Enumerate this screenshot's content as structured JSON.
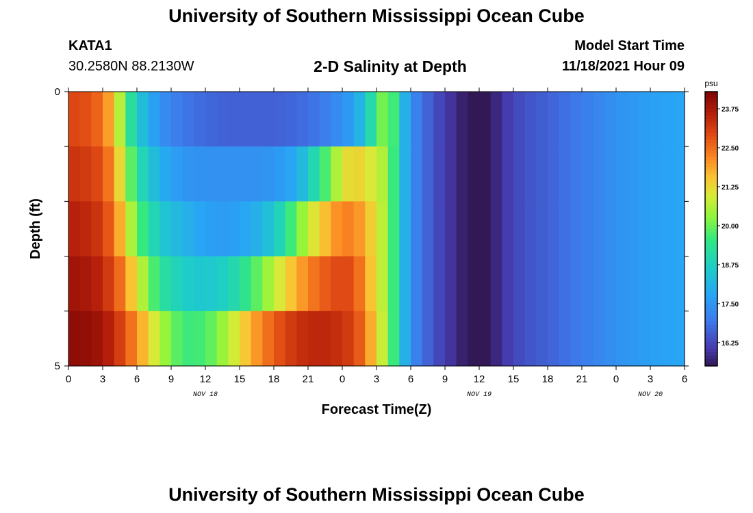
{
  "header": {
    "title": "University of Southern Mississippi Ocean Cube",
    "station": "KATA1",
    "coordinates": "30.2580N  88.2130W",
    "subtitle": "2-D Salinity at Depth",
    "model_start_label": "Model Start Time",
    "model_start_value": "11/18/2021 Hour 09"
  },
  "footer": {
    "title": "University of Southern Mississippi Ocean Cube"
  },
  "chart_data": {
    "type": "heatmap",
    "title": "2-D Salinity at Depth",
    "xlabel": "Forecast Time(Z)",
    "ylabel": "Depth (ft)",
    "x_start": 0,
    "x_end": 54,
    "x_ticks": [
      {
        "t": 0,
        "label": "0"
      },
      {
        "t": 3,
        "label": "3"
      },
      {
        "t": 6,
        "label": "6"
      },
      {
        "t": 9,
        "label": "9"
      },
      {
        "t": 12,
        "label": "12"
      },
      {
        "t": 15,
        "label": "15"
      },
      {
        "t": 18,
        "label": "18"
      },
      {
        "t": 21,
        "label": "21"
      },
      {
        "t": 24,
        "label": "0"
      },
      {
        "t": 27,
        "label": "3"
      },
      {
        "t": 30,
        "label": "6"
      },
      {
        "t": 33,
        "label": "9"
      },
      {
        "t": 36,
        "label": "12"
      },
      {
        "t": 39,
        "label": "15"
      },
      {
        "t": 42,
        "label": "18"
      },
      {
        "t": 45,
        "label": "21"
      },
      {
        "t": 48,
        "label": "0"
      },
      {
        "t": 51,
        "label": "3"
      },
      {
        "t": 54,
        "label": "6"
      }
    ],
    "date_labels": [
      {
        "t": 12,
        "label": "NOV 18"
      },
      {
        "t": 36,
        "label": "NOV 19"
      },
      {
        "t": 51,
        "label": "NOV 20"
      }
    ],
    "y_ticks": [
      {
        "v": 0,
        "label": "0"
      },
      {
        "v": 1,
        "label": ""
      },
      {
        "v": 2,
        "label": ""
      },
      {
        "v": 3,
        "label": ""
      },
      {
        "v": 4,
        "label": ""
      },
      {
        "v": 5,
        "label": "5"
      }
    ],
    "ylim": [
      0,
      5
    ],
    "depth_layers": [
      0,
      1,
      2,
      3,
      4
    ],
    "time_keyframes": [
      0,
      2,
      3,
      4,
      5,
      6,
      8,
      10,
      12,
      14,
      16,
      18,
      20,
      22,
      24,
      25,
      26,
      27,
      28,
      29,
      30,
      32,
      34,
      36,
      37,
      38,
      40,
      42,
      45,
      48,
      51,
      54
    ],
    "salinity": [
      [
        23.0,
        22.8,
        22.4,
        21.5,
        19.8,
        18.6,
        17.4,
        16.9,
        16.7,
        16.6,
        16.6,
        16.6,
        16.7,
        16.9,
        17.4,
        17.7,
        18.5,
        19.6,
        20.5,
        18.8,
        17.3,
        16.4,
        15.8,
        15.2,
        15.5,
        16.0,
        16.4,
        16.6,
        17.0,
        17.4,
        17.7,
        17.8
      ],
      [
        23.3,
        23.1,
        22.8,
        22.0,
        20.5,
        19.2,
        18.0,
        17.5,
        17.4,
        17.4,
        17.4,
        17.5,
        17.9,
        19.3,
        21.0,
        21.4,
        21.2,
        20.8,
        20.4,
        18.8,
        17.3,
        16.4,
        15.8,
        15.2,
        15.5,
        16.0,
        16.4,
        16.6,
        17.0,
        17.4,
        17.7,
        17.8
      ],
      [
        23.6,
        23.4,
        23.1,
        22.4,
        21.2,
        19.9,
        18.6,
        18.1,
        17.7,
        17.6,
        17.9,
        18.5,
        20.0,
        21.4,
        22.3,
        22.2,
        21.8,
        21.0,
        20.4,
        18.8,
        17.3,
        16.4,
        15.8,
        15.2,
        15.5,
        16.0,
        16.4,
        16.6,
        17.0,
        17.4,
        17.7,
        17.8
      ],
      [
        23.9,
        23.7,
        23.4,
        22.9,
        22.1,
        21.0,
        19.3,
        18.7,
        18.5,
        18.8,
        19.6,
        20.7,
        21.8,
        22.6,
        23.0,
        22.8,
        22.1,
        21.0,
        20.4,
        18.8,
        17.3,
        16.4,
        15.8,
        15.2,
        15.5,
        16.0,
        16.4,
        16.6,
        17.0,
        17.4,
        17.7,
        17.8
      ],
      [
        24.1,
        24.0,
        23.8,
        23.4,
        22.8,
        22.1,
        20.6,
        19.6,
        19.7,
        20.6,
        21.8,
        22.7,
        23.3,
        23.5,
        23.3,
        23.0,
        22.4,
        21.2,
        20.4,
        18.8,
        17.3,
        16.4,
        15.8,
        15.2,
        15.5,
        16.0,
        16.4,
        16.6,
        17.0,
        17.4,
        17.7,
        17.8
      ]
    ],
    "colorbar": {
      "unit": "psu",
      "ticks": [
        "23.75",
        "22.50",
        "21.25",
        "20.00",
        "18.75",
        "17.50",
        "16.25"
      ],
      "min": 15.5,
      "max": 24.3
    }
  }
}
